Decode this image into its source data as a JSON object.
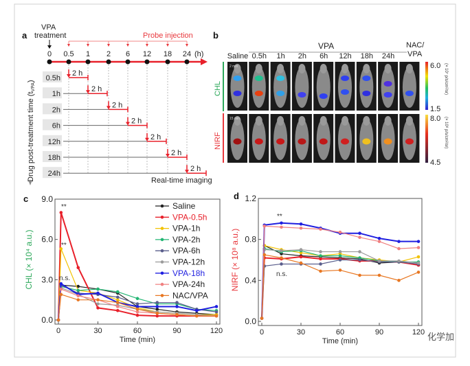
{
  "panel_a": {
    "letter": "a",
    "vpa_label": "VPA",
    "treatment_label": "treatment",
    "probe_label": "Probe injection",
    "time_ticks": [
      "0",
      "0.5",
      "1",
      "2",
      "6",
      "12",
      "18",
      "24"
    ],
    "time_unit": "(h)",
    "interval_label": "2 h",
    "rows": [
      "0.5h",
      "1h",
      "2h",
      "6h",
      "12h",
      "18h",
      "24h"
    ],
    "ylabel": "Drug post-treatment time (t",
    "ylabel_sub": "VPA",
    "ylabel_end": ")",
    "imaging_label": "Real-time imaging"
  },
  "panel_b": {
    "letter": "b",
    "vpa_group": "VPA",
    "columns": [
      "Saline",
      "0.5h",
      "1h",
      "2h",
      "6h",
      "12h",
      "18h",
      "24h"
    ],
    "nac_line1": "NAC/",
    "nac_line2": "VPA",
    "row_labels": [
      "CHL",
      "NIRF"
    ],
    "time_stamps": [
      "2 min",
      "15 min"
    ],
    "chl_scale": {
      "max": "6.0",
      "min": "1.5",
      "unit": "(× 10⁷ p/s/cm²/sr)"
    },
    "nirf_scale": {
      "max": "8.0",
      "min": "4.5",
      "unit": "(× 10⁸ p/s/cm²/sr)"
    },
    "colors": {
      "chl_label": "#2ca85a",
      "nirf_label": "#e8383d"
    }
  },
  "watermark": "化学加",
  "chart_data": [
    {
      "panel": "c",
      "type": "line",
      "xlabel": "Time (min)",
      "ylabel": "CHL (× 10⁴ a.u.)",
      "xlim": [
        0,
        120
      ],
      "ylim": [
        0,
        9
      ],
      "xticks": [
        "0",
        "30",
        "60",
        "90",
        "120"
      ],
      "yticks": [
        "0.0",
        "3.0",
        "6.0",
        "9.0"
      ],
      "annotations": [
        "**",
        "**",
        "n.s."
      ],
      "legend_position": "top-right",
      "x": [
        0,
        2,
        15,
        30,
        45,
        60,
        75,
        90,
        105,
        120
      ],
      "series": [
        {
          "name": "Saline",
          "color": "#222222",
          "values": [
            0,
            2.6,
            2.5,
            2.3,
            2.0,
            1.0,
            0.8,
            0.6,
            0.5,
            0.4
          ]
        },
        {
          "name": "VPA-0.5h",
          "color": "#e8202a",
          "values": [
            0,
            8.0,
            3.9,
            0.9,
            0.7,
            0.35,
            0.3,
            0.3,
            0.3,
            0.3
          ]
        },
        {
          "name": "VPA-1h",
          "color": "#f2c200",
          "values": [
            0,
            5.3,
            2.2,
            2.0,
            1.5,
            0.9,
            0.6,
            0.5,
            0.4,
            0.4
          ]
        },
        {
          "name": "VPA-2h",
          "color": "#22b573",
          "values": [
            0,
            2.5,
            2.2,
            2.3,
            2.1,
            1.6,
            1.2,
            1.2,
            0.8,
            0.7
          ]
        },
        {
          "name": "VPA-6h",
          "color": "#5a5e8c",
          "values": [
            0,
            2.6,
            2.0,
            1.9,
            1.7,
            1.2,
            1.3,
            1.3,
            0.8,
            0.6
          ]
        },
        {
          "name": "VPA-12h",
          "color": "#9a9a9a",
          "values": [
            0,
            2.4,
            1.9,
            1.2,
            1.1,
            0.8,
            0.6,
            0.5,
            0.4,
            0.3
          ]
        },
        {
          "name": "VPA-18h",
          "color": "#1f1fe0",
          "values": [
            0,
            2.7,
            1.9,
            2.0,
            1.3,
            1.0,
            1.0,
            1.0,
            0.7,
            1.0
          ]
        },
        {
          "name": "VPA-24h",
          "color": "#f08080",
          "values": [
            0,
            2.3,
            1.8,
            1.5,
            1.0,
            0.6,
            0.5,
            0.4,
            0.3,
            0.3
          ]
        },
        {
          "name": "NAC/VPA",
          "color": "#e87722",
          "values": [
            0,
            1.9,
            1.5,
            1.5,
            1.3,
            0.8,
            0.5,
            0.4,
            0.3,
            0.3
          ]
        }
      ]
    },
    {
      "panel": "d",
      "type": "line",
      "xlabel": "Time (min)",
      "ylabel": "NIRF (× 10⁸ a.u.)",
      "xlim": [
        0,
        120
      ],
      "ylim": [
        0,
        1.2
      ],
      "xticks": [
        "0",
        "30",
        "60",
        "90",
        "120"
      ],
      "yticks": [
        "0.0",
        "0.4",
        "0.8",
        "1.2"
      ],
      "annotations": [
        "**",
        "n.s."
      ],
      "x": [
        0,
        2,
        15,
        30,
        45,
        60,
        75,
        90,
        105,
        120
      ],
      "series": [
        {
          "name": "Saline",
          "color": "#222222",
          "values": [
            0.03,
            0.74,
            0.66,
            0.64,
            0.63,
            0.62,
            0.61,
            0.57,
            0.58,
            0.55
          ]
        },
        {
          "name": "VPA-0.5h",
          "color": "#e8202a",
          "values": [
            0.03,
            0.62,
            0.61,
            0.63,
            0.61,
            0.61,
            0.59,
            0.59,
            0.58,
            0.55
          ]
        },
        {
          "name": "VPA-1h",
          "color": "#f2c200",
          "values": [
            0.03,
            0.74,
            0.7,
            0.67,
            0.64,
            0.66,
            0.62,
            0.6,
            0.58,
            0.63
          ]
        },
        {
          "name": "VPA-2h",
          "color": "#22b573",
          "values": [
            0.03,
            0.71,
            0.68,
            0.69,
            0.64,
            0.64,
            0.62,
            0.59,
            0.58,
            0.58
          ]
        },
        {
          "name": "VPA-6h",
          "color": "#5a5e8c",
          "values": [
            0.03,
            0.54,
            0.56,
            0.56,
            0.56,
            0.6,
            0.6,
            0.58,
            0.58,
            0.56
          ]
        },
        {
          "name": "VPA-12h",
          "color": "#9a9a9a",
          "values": [
            0.03,
            0.7,
            0.69,
            0.7,
            0.68,
            0.68,
            0.68,
            0.59,
            0.59,
            0.57
          ]
        },
        {
          "name": "VPA-18h",
          "color": "#1f1fe0",
          "values": [
            0.03,
            0.94,
            0.96,
            0.95,
            0.91,
            0.86,
            0.86,
            0.81,
            0.78,
            0.78
          ]
        },
        {
          "name": "VPA-24h",
          "color": "#f08080",
          "values": [
            0.03,
            0.93,
            0.92,
            0.91,
            0.9,
            0.87,
            0.82,
            0.78,
            0.71,
            0.72
          ]
        },
        {
          "name": "NAC/VPA",
          "color": "#e87722",
          "values": [
            0.03,
            0.65,
            0.62,
            0.57,
            0.49,
            0.5,
            0.45,
            0.45,
            0.4,
            0.48
          ]
        }
      ]
    }
  ]
}
